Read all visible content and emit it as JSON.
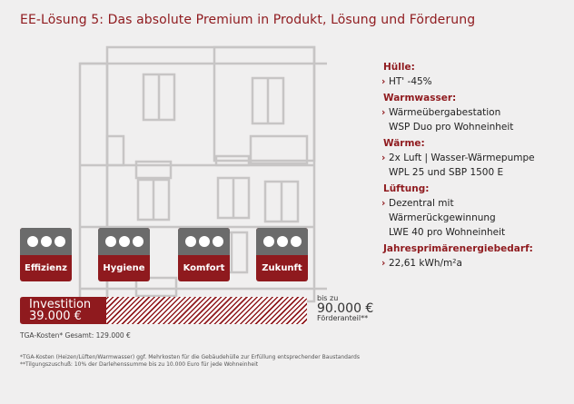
{
  "title": "EE-Lösung 5: Das absolute Premium in Produkt, Lösung und Förderung",
  "specs": [
    {
      "heading": "Hülle:",
      "lines": [
        "HT' -45%"
      ]
    },
    {
      "heading": "Warmwasser:",
      "lines": [
        "Wärmeübergabestation",
        "WSP Duo pro Wohneinheit"
      ]
    },
    {
      "heading": "Wärme:",
      "lines": [
        "2x Luft | Wasser-Wärmepumpe",
        "WPL 25 und SBP 1500 E"
      ]
    },
    {
      "heading": "Lüftung:",
      "lines": [
        "Dezentral mit",
        "Wärmerückgewinnung",
        "LWE 40 pro Wohneinheit"
      ]
    },
    {
      "heading": "Jahresprimärenergiebedarf:",
      "lines": [
        "22,61 kWh/m²a"
      ]
    }
  ],
  "tiles": [
    {
      "label": "Effizienz",
      "dots": 3
    },
    {
      "label": "Hygiene",
      "dots": 3
    },
    {
      "label": "Komfort",
      "dots": 3
    },
    {
      "label": "Zukunft",
      "dots": 3
    }
  ],
  "investition": {
    "label": "Investition",
    "amount": "39.000 €",
    "bis": "bis zu",
    "foerder_amount": "90.000 €",
    "foerder_label": "Förderanteil**"
  },
  "tga_gesamt": "TGA-Kosten* Gesamt: 129.000 €",
  "footnotes": [
    "*TGA-Kosten (Heizen/Lüften/Warmwasser) ggf. Mehrkosten für die Gebäudehülle zur Erfüllung entsprechender Baustandards",
    "**Tilgungszuschuß: 10% der Darlehenssumme bis zu 10.000 Euro für jede Wohneinheit"
  ],
  "colors": {
    "accent": "#8f1a1e",
    "tile_top": "#6b6b6b",
    "background": "#f0efef"
  }
}
